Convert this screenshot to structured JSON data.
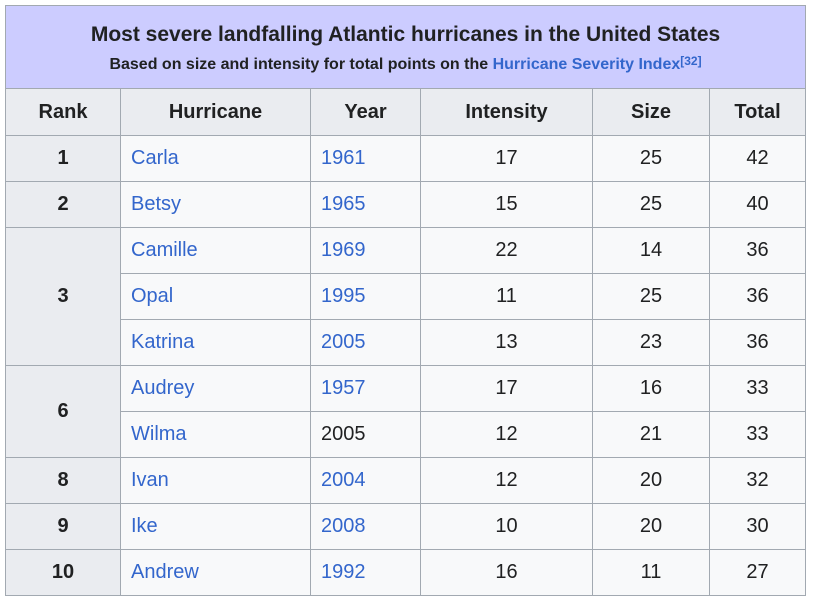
{
  "table": {
    "title": "Most severe landfalling Atlantic hurricanes in the United States",
    "subtitle_prefix": "Based on size and intensity for total points on the ",
    "subtitle_link": "Hurricane Severity Index",
    "subtitle_ref": "[32]",
    "headers": {
      "rank": "Rank",
      "hurricane": "Hurricane",
      "year": "Year",
      "intensity": "Intensity",
      "size": "Size",
      "total": "Total"
    },
    "rows": [
      {
        "rank": "1",
        "name": "Carla",
        "year": "1961",
        "intensity": "17",
        "size": "25",
        "total": "42"
      },
      {
        "rank": "2",
        "name": "Betsy",
        "year": "1965",
        "intensity": "15",
        "size": "25",
        "total": "40"
      },
      {
        "rank": "3",
        "name": "Camille",
        "year": "1969",
        "intensity": "22",
        "size": "14",
        "total": "36"
      },
      {
        "name": "Opal",
        "year": "1995",
        "intensity": "11",
        "size": "25",
        "total": "36"
      },
      {
        "name": "Katrina",
        "year": "2005",
        "intensity": "13",
        "size": "23",
        "total": "36"
      },
      {
        "rank": "6",
        "name": "Audrey",
        "year": "1957",
        "intensity": "17",
        "size": "16",
        "total": "33"
      },
      {
        "name": "Wilma",
        "year": "2005",
        "intensity": "12",
        "size": "21",
        "total": "33"
      },
      {
        "rank": "8",
        "name": "Ivan",
        "year": "2004",
        "intensity": "12",
        "size": "20",
        "total": "32"
      },
      {
        "rank": "9",
        "name": "Ike",
        "year": "2008",
        "intensity": "10",
        "size": "20",
        "total": "30"
      },
      {
        "rank": "10",
        "name": "Andrew",
        "year": "1992",
        "intensity": "16",
        "size": "11",
        "total": "27"
      }
    ]
  }
}
